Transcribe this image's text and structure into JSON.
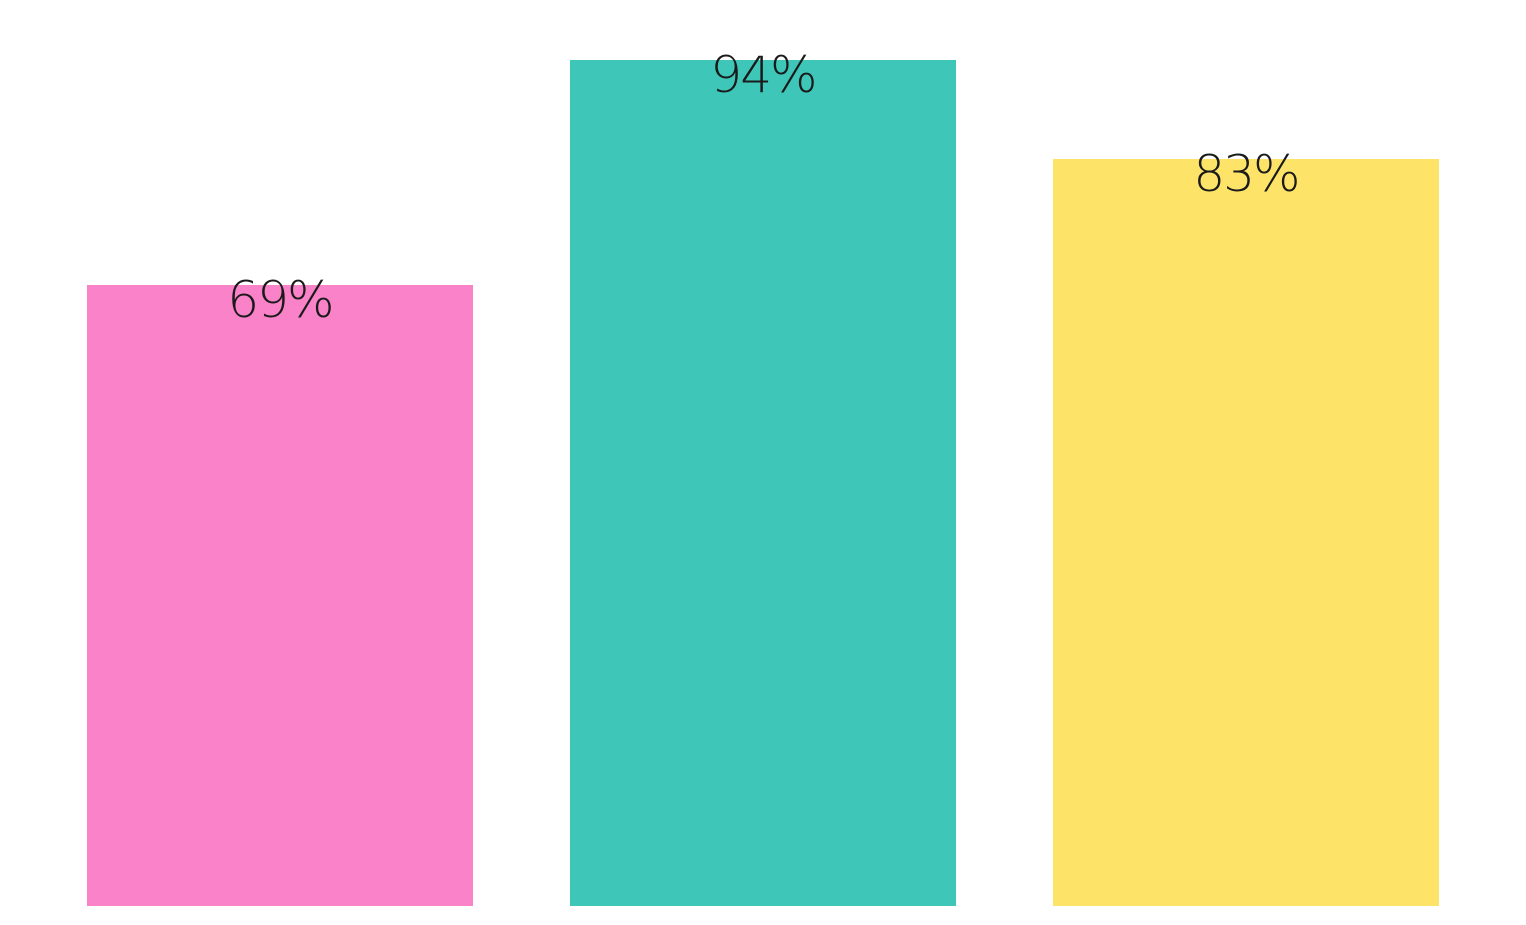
{
  "chart_data": {
    "type": "bar",
    "categories": [
      "",
      "",
      ""
    ],
    "values": [
      69,
      94,
      83
    ],
    "data_labels": [
      "69%",
      "94%",
      "83%"
    ],
    "colors": [
      "#fa82c8",
      "#3ec6b9",
      "#fde468"
    ],
    "ylim": [
      0,
      100
    ],
    "grid": false,
    "legend": "none",
    "title": "",
    "xlabel": "",
    "ylabel": ""
  }
}
